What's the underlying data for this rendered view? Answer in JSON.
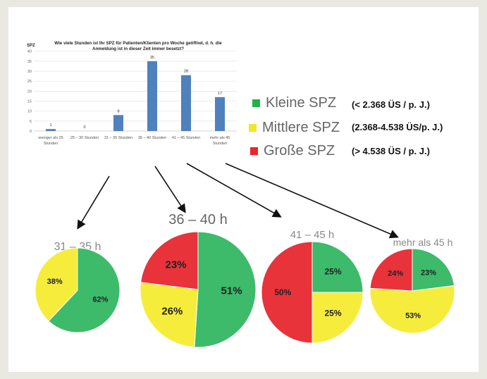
{
  "chart_data": [
    {
      "type": "bar",
      "title": "Wie viele Stunden ist Ihr SPZ für Patienten/Klienten pro Woche geöffnet, d. h. die Anmeldung ist in dieser Zeit immer besetzt?",
      "ylabel": "SPZ",
      "xlabel": "",
      "ylim": [
        0,
        40
      ],
      "yticks": [
        0,
        5,
        10,
        15,
        20,
        25,
        30,
        35,
        40
      ],
      "categories": [
        [
          "weniger als 25",
          "Stunden"
        ],
        [
          "25 – 30 Stunden"
        ],
        [
          "31 – 35 Stunden"
        ],
        [
          "36 – 40 Stunden"
        ],
        [
          "41 – 45 Stunden"
        ],
        [
          "mehr als 45",
          "Stunden"
        ]
      ],
      "values": [
        1,
        0,
        8,
        35,
        28,
        17
      ],
      "color": "#4f81bd",
      "grid": true
    },
    {
      "type": "pie",
      "title": "31 – 35 h",
      "slices": [
        {
          "name": "Kleine SPZ",
          "value": 62
        },
        {
          "name": "Mittlere SPZ",
          "value": 38
        }
      ]
    },
    {
      "type": "pie",
      "title": "36 – 40 h",
      "slices": [
        {
          "name": "Kleine SPZ",
          "value": 51
        },
        {
          "name": "Mittlere SPZ",
          "value": 26
        },
        {
          "name": "Große SPZ",
          "value": 23
        }
      ]
    },
    {
      "type": "pie",
      "title": "41 – 45 h",
      "slices": [
        {
          "name": "Kleine SPZ",
          "value": 25
        },
        {
          "name": "Mittlere SPZ",
          "value": 25
        },
        {
          "name": "Große SPZ",
          "value": 50
        }
      ]
    },
    {
      "type": "pie",
      "title": "mehr als 45 h",
      "slices": [
        {
          "name": "Kleine SPZ",
          "value": 23
        },
        {
          "name": "Mittlere SPZ",
          "value": 53
        },
        {
          "name": "Große SPZ",
          "value": 24
        }
      ]
    }
  ],
  "legend": [
    {
      "label": "Kleine SPZ",
      "range": "(< 2.368 ÜS / p. J.)",
      "color": "#1fb24a"
    },
    {
      "label": "Mittlere SPZ",
      "range": "(2.368-4.538 ÜS/p. J.)",
      "color": "#f2e52a"
    },
    {
      "label": "Große SPZ",
      "range": "(> 4.538 ÜS / p. J.)",
      "color": "#e8262b"
    }
  ],
  "pie_colors": {
    "Kleine SPZ": "#3dba6a",
    "Mittlere SPZ": "#f6ec3b",
    "Große SPZ": "#e8333a"
  }
}
